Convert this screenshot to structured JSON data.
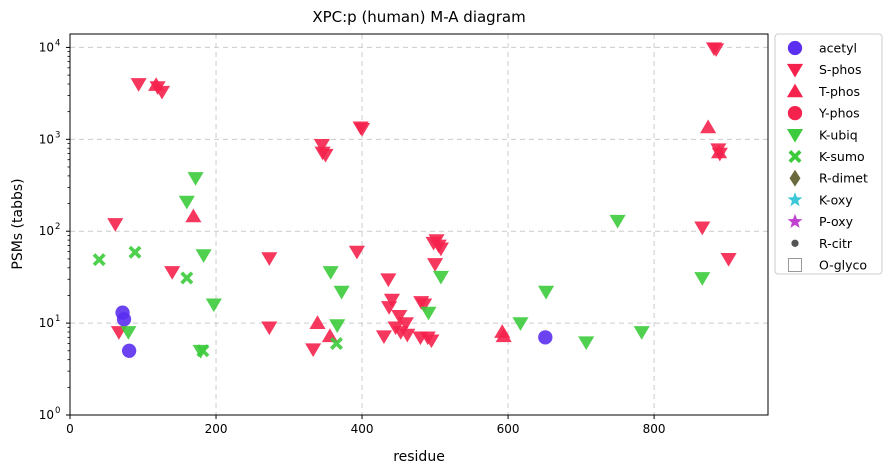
{
  "chart_data": {
    "type": "scatter",
    "title": "XPC:p (human) M-A diagram",
    "xlabel": "residue",
    "ylabel": "PSMs (tabbs)",
    "xlim": [
      0,
      956
    ],
    "ylim": [
      1,
      14000
    ],
    "y_scale": "log",
    "x_ticks": [
      0,
      200,
      400,
      600,
      800
    ],
    "x_tick_labels": [
      "0",
      "200",
      "400",
      "600",
      "800"
    ],
    "y_ticks": [
      1,
      10,
      100,
      1000,
      10000
    ],
    "y_tick_labels": [
      [
        "10",
        "0"
      ],
      [
        "10",
        "1"
      ],
      [
        "10",
        "2"
      ],
      [
        "10",
        "3"
      ],
      [
        "10",
        "4"
      ]
    ],
    "grid": true,
    "legend_position": "outside right",
    "series": [
      {
        "name": "acetyl",
        "marker": "circle",
        "color": "#5b2ff0",
        "points": [
          [
            72,
            13
          ],
          [
            74,
            11
          ],
          [
            81,
            5
          ],
          [
            651,
            7
          ]
        ]
      },
      {
        "name": "S-phos",
        "marker": "triangle-down",
        "color": "#f5224d",
        "points": [
          [
            62,
            120
          ],
          [
            67,
            8
          ],
          [
            94,
            4000
          ],
          [
            120,
            3700
          ],
          [
            126,
            3300
          ],
          [
            140,
            36
          ],
          [
            273,
            51
          ],
          [
            273,
            9
          ],
          [
            333,
            5.2
          ],
          [
            345,
            870
          ],
          [
            346,
            720
          ],
          [
            350,
            680
          ],
          [
            398,
            1350
          ],
          [
            400,
            1300
          ],
          [
            393,
            60
          ],
          [
            430,
            7.2
          ],
          [
            436,
            30
          ],
          [
            437,
            15
          ],
          [
            441,
            18
          ],
          [
            446,
            9
          ],
          [
            451,
            12
          ],
          [
            453,
            8
          ],
          [
            460,
            10
          ],
          [
            462,
            7.5
          ],
          [
            480,
            7
          ],
          [
            481,
            17
          ],
          [
            485,
            16
          ],
          [
            490,
            7
          ],
          [
            495,
            6.5
          ],
          [
            498,
            75
          ],
          [
            500,
            44
          ],
          [
            502,
            80
          ],
          [
            505,
            70
          ],
          [
            508,
            65
          ],
          [
            866,
            110
          ],
          [
            882,
            9800
          ],
          [
            885,
            9600
          ],
          [
            888,
            780
          ],
          [
            890,
            700
          ],
          [
            902,
            50
          ]
        ]
      },
      {
        "name": "T-phos",
        "marker": "triangle-up",
        "color": "#f5224d",
        "points": [
          [
            118,
            3900
          ],
          [
            169,
            145
          ],
          [
            339,
            10
          ],
          [
            356,
            7.2
          ],
          [
            592,
            8
          ],
          [
            594,
            7.2
          ],
          [
            874,
            1350
          ],
          [
            889,
            720
          ]
        ]
      },
      {
        "name": "Y-phos",
        "marker": "circle",
        "color": "#f5224d",
        "points": []
      },
      {
        "name": "K-ubiq",
        "marker": "triangle-down",
        "color": "#3ccb3c",
        "points": [
          [
            80,
            8
          ],
          [
            160,
            210
          ],
          [
            172,
            380
          ],
          [
            179,
            5
          ],
          [
            183,
            55
          ],
          [
            197,
            16
          ],
          [
            357,
            36
          ],
          [
            366,
            9.5
          ],
          [
            372,
            22
          ],
          [
            491,
            13
          ],
          [
            508,
            32
          ],
          [
            652,
            22
          ],
          [
            617,
            10
          ],
          [
            707,
            6.2
          ],
          [
            750,
            130
          ],
          [
            783,
            8
          ],
          [
            866,
            31
          ]
        ]
      },
      {
        "name": "K-sumo",
        "marker": "x",
        "color": "#3ccb3c",
        "points": [
          [
            40,
            49
          ],
          [
            89,
            59
          ],
          [
            160,
            31
          ],
          [
            182,
            5
          ],
          [
            365,
            6
          ]
        ]
      },
      {
        "name": "R-dimet",
        "marker": "diamond",
        "color": "#6b6a3c",
        "points": []
      },
      {
        "name": "K-oxy",
        "marker": "star",
        "color": "#3cc8d8",
        "points": []
      },
      {
        "name": "P-oxy",
        "marker": "star",
        "color": "#c040d0",
        "points": []
      },
      {
        "name": "R-citr",
        "marker": "small-circle",
        "color": "#555555",
        "points": []
      },
      {
        "name": "O-glyco",
        "marker": "square-open",
        "color": "#999999",
        "points": []
      }
    ]
  }
}
